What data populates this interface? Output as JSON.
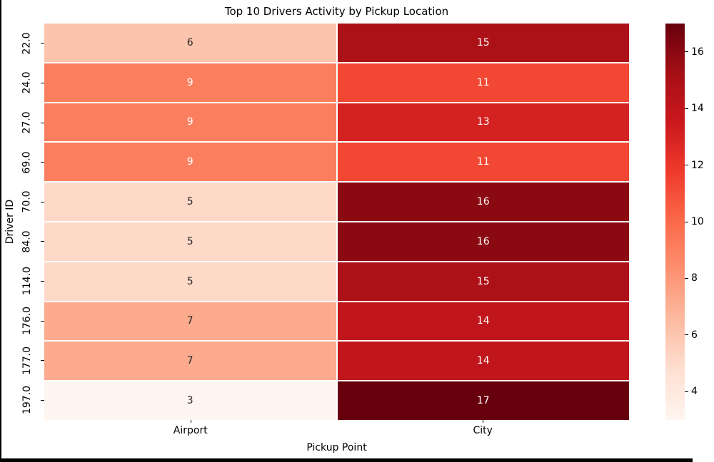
{
  "chart_data": {
    "type": "heatmap",
    "title": "Top 10 Drivers Activity by Pickup Location",
    "xlabel": "Pickup Point",
    "ylabel": "Driver ID",
    "x_tick_labels": [
      "Airport",
      "City"
    ],
    "y_tick_labels": [
      "22.0",
      "24.0",
      "27.0",
      "69.0",
      "70.0",
      "84.0",
      "114.0",
      "176.0",
      "177.0",
      "197.0"
    ],
    "values": [
      [
        6,
        15
      ],
      [
        9,
        11
      ],
      [
        9,
        13
      ],
      [
        9,
        11
      ],
      [
        5,
        16
      ],
      [
        5,
        16
      ],
      [
        5,
        15
      ],
      [
        7,
        14
      ],
      [
        7,
        14
      ],
      [
        3,
        17
      ]
    ],
    "vmin": 3,
    "vmax": 17,
    "colormap": "Reds",
    "grid_line_color": "#ffffff",
    "background": "#ffffff",
    "cell_colors": [
      [
        "#fcc4ac",
        "#ac1117"
      ],
      [
        "#fb7e5e",
        "#f24733"
      ],
      [
        "#fb7e5e",
        "#d42221"
      ],
      [
        "#fb7e5e",
        "#f24733"
      ],
      [
        "#fed9c8",
        "#8b0a12"
      ],
      [
        "#fed9c8",
        "#8b0a12"
      ],
      [
        "#fed9c8",
        "#ac1117"
      ],
      [
        "#fcab8f",
        "#c0161b"
      ],
      [
        "#fcab8f",
        "#c0161b"
      ],
      [
        "#fff5f0",
        "#67000d"
      ]
    ],
    "annot_color_dark": "#262626",
    "annot_color_light": "#ffffff",
    "annot_white_threshold": 9,
    "colorbar": {
      "ticks": [
        16,
        14,
        12,
        10,
        8,
        6,
        4
      ],
      "gradient_top_to_bottom": [
        "#67000d",
        "#a50f15",
        "#cb181d",
        "#ef3b2c",
        "#fb6a4a",
        "#fc9272",
        "#fcbba1",
        "#fee0d2",
        "#fff5f0"
      ]
    }
  }
}
